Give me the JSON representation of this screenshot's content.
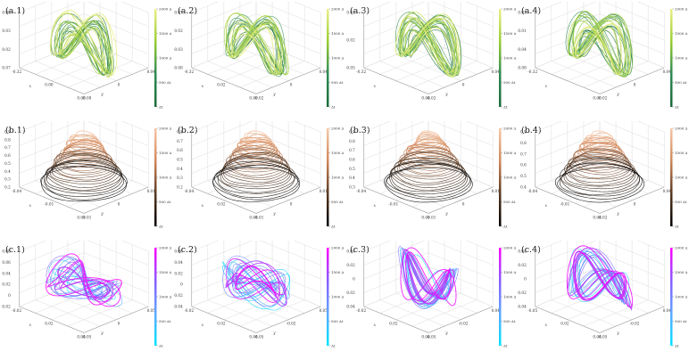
{
  "figure": {
    "background": "#ffffff"
  },
  "chart_data": [
    {
      "id": "a.1",
      "label": "(a.1)",
      "type": "line",
      "row": 0,
      "col": 0,
      "shape": "arch",
      "colormap": [
        "#1b6b3a",
        "#2e8b57",
        "#9acd32",
        "#ecf08a"
      ],
      "z_ticks": [
        "0.08",
        "0.03",
        "-0.02",
        "-0.07"
      ],
      "axis_ticks_left": [
        "-0.32",
        "0.00",
        "0.08"
      ],
      "axis_ticks_right": [
        "-0.08",
        "0",
        "0.04"
      ],
      "axis_labels": {
        "x": "x",
        "y": "y",
        "z": "z"
      },
      "colorbar_ticks": [
        "2000 Δt",
        "1500 Δt",
        "1000 Δt",
        "500 Δt",
        "Δt"
      ]
    },
    {
      "id": "a.2",
      "label": "(a.2)",
      "type": "line",
      "row": 0,
      "col": 1,
      "shape": "arch",
      "colormap": [
        "#1b6b3a",
        "#2e8b57",
        "#9acd32",
        "#ecf08a"
      ],
      "z_ticks": [
        "0.07",
        "0.02",
        "-0.03",
        "-0.08"
      ],
      "axis_ticks_left": [
        "-0.32",
        "0.02",
        "0.09"
      ],
      "axis_ticks_right": [
        "-0.02",
        "0",
        "0.04"
      ],
      "axis_labels": {
        "x": "x",
        "y": "y",
        "z": "z"
      },
      "colorbar_ticks": [
        "2000 Δt",
        "1500 Δt",
        "1000 Δt",
        "500 Δt",
        "Δt"
      ]
    },
    {
      "id": "a.3",
      "label": "(a.3)",
      "type": "line",
      "row": 0,
      "col": 2,
      "shape": "arch",
      "colormap": [
        "#1b6b3a",
        "#2e8b57",
        "#9acd32",
        "#ecf08a"
      ],
      "z_ticks": [
        "0.01",
        "-0.02",
        "-0.05"
      ],
      "axis_ticks_left": [
        "-0.32",
        "0.04"
      ],
      "axis_ticks_right": [
        "-0.02",
        "0",
        "0.04"
      ],
      "axis_labels": {
        "x": "x",
        "y": "y",
        "z": "z"
      },
      "colorbar_ticks": [
        "2000 Δt",
        "1500 Δt",
        "1000 Δt",
        "500 Δt",
        "Δt"
      ]
    },
    {
      "id": "a.4",
      "label": "(a.4)",
      "type": "line",
      "row": 0,
      "col": 3,
      "shape": "arch",
      "colormap": [
        "#1b6b3a",
        "#2e8b57",
        "#9acd32",
        "#ecf08a"
      ],
      "z_ticks": [
        "0.03",
        "-0.01",
        "-0.04",
        "-0.08"
      ],
      "axis_ticks_left": [
        "-0.32",
        "0.00"
      ],
      "axis_ticks_right": [
        "-0.02",
        "0",
        "0.04"
      ],
      "axis_labels": {
        "x": "x",
        "y": "y",
        "z": "z"
      },
      "colorbar_ticks": [
        "2000 Δt",
        "1500 Δt",
        "1000 Δt",
        "500 Δt",
        "Δt"
      ]
    },
    {
      "id": "b.1",
      "label": "(b.1)",
      "type": "line",
      "row": 1,
      "col": 0,
      "shape": "cone",
      "colormap": [
        "#000000",
        "#5a3a22",
        "#d2875a",
        "#f6c8a8"
      ],
      "z_ticks": [
        "0.9",
        "0.8",
        "0.7",
        "0.6",
        "0.5",
        "0.4",
        "0.3",
        "0.2"
      ],
      "axis_ticks_left": [
        "-0.04",
        "-0.01",
        "0.01"
      ],
      "axis_ticks_right": [
        "-0.01",
        "0",
        "0.01"
      ],
      "axis_labels": {
        "x": "x",
        "y": "y",
        "z": "z"
      },
      "colorbar_ticks": [
        "2000 Δt",
        "1500 Δt",
        "1000 Δt",
        "500 Δt",
        "Δt"
      ]
    },
    {
      "id": "b.2",
      "label": "(b.2)",
      "type": "line",
      "row": 1,
      "col": 1,
      "shape": "cone",
      "colormap": [
        "#000000",
        "#5a3a22",
        "#d2875a",
        "#f6c8a8"
      ],
      "z_ticks": [
        "0.8",
        "0.7",
        "0.6",
        "0.5",
        "0.4",
        "0.3",
        "0.2"
      ],
      "axis_ticks_left": [
        "-0.04",
        "0.02",
        "0.04"
      ],
      "axis_ticks_right": [
        "-0.01",
        "0",
        "0.01"
      ],
      "axis_labels": {
        "x": "x",
        "y": "y",
        "z": "z"
      },
      "colorbar_ticks": [
        "2000 Δt",
        "1500 Δt",
        "1000 Δt",
        "500 Δt",
        "Δt"
      ]
    },
    {
      "id": "b.3",
      "label": "(b.3)",
      "type": "line",
      "row": 1,
      "col": 2,
      "shape": "cone",
      "colormap": [
        "#000000",
        "#5a3a22",
        "#d2875a",
        "#f6c8a8"
      ],
      "z_ticks": [
        "0.9",
        "0.8",
        "0.7",
        "0.6",
        "0.5",
        "0.4",
        "0.3"
      ],
      "axis_ticks_left": [
        "-0.04",
        "-0.01",
        "0.01"
      ],
      "axis_ticks_right": [
        "-0.01",
        "0",
        "0.01"
      ],
      "axis_labels": {
        "x": "x",
        "y": "y",
        "z": "z"
      },
      "colorbar_ticks": [
        "2000 Δt",
        "1500 Δt",
        "1000 Δt",
        "500 Δt",
        "Δt"
      ]
    },
    {
      "id": "b.4",
      "label": "(b.4)",
      "type": "line",
      "row": 1,
      "col": 3,
      "shape": "cone",
      "colormap": [
        "#000000",
        "#5a3a22",
        "#d2875a",
        "#f6c8a8"
      ],
      "z_ticks": [
        "0.9",
        "0.8",
        "0.7",
        "0.6",
        "0.5",
        "0.4"
      ],
      "axis_ticks_left": [
        "-0.04",
        "-0.01",
        "0.04"
      ],
      "axis_ticks_right": [
        "-0.02",
        "0",
        "0.04"
      ],
      "axis_labels": {
        "x": "x",
        "y": "y",
        "z": "z"
      },
      "colorbar_ticks": [
        "2000 Δt",
        "1500 Δt",
        "1000 Δt",
        "500 Δt",
        "Δt"
      ]
    },
    {
      "id": "c.1",
      "label": "(c.1)",
      "type": "line",
      "row": 2,
      "col": 0,
      "shape": "bowtie",
      "colormap": [
        "#00e5ff",
        "#5fa8ff",
        "#8a5cff",
        "#ff00ff"
      ],
      "z_ticks": [
        "0.08",
        "0.06",
        "0.04",
        "0.02",
        "0",
        "-0.02"
      ],
      "axis_ticks_left": [
        "-0.02",
        "0.02",
        "0.04"
      ],
      "axis_ticks_right": [
        "-0.05",
        "0",
        "0.05"
      ],
      "axis_labels": {
        "x": "x",
        "y": "y",
        "z": "z"
      },
      "colorbar_ticks": [
        "2000 Δt",
        "1500 Δt",
        "1000 Δt",
        "500 Δt",
        "Δt"
      ]
    },
    {
      "id": "c.2",
      "label": "(c.2)",
      "type": "line",
      "row": 2,
      "col": 1,
      "shape": "loop",
      "colormap": [
        "#00e5ff",
        "#5fa8ff",
        "#8a5cff",
        "#ff00ff"
      ],
      "z_ticks": [
        "0.06",
        "0.04",
        "0.02",
        "0",
        "-0.02",
        "-0.04"
      ],
      "axis_ticks_left": [
        "-0.02",
        "0.02",
        "0.04"
      ],
      "axis_ticks_right": [
        "-0.05",
        "-0.02",
        "0.05"
      ],
      "axis_labels": {
        "x": "x",
        "y": "y",
        "z": "z"
      },
      "colorbar_ticks": [
        "2000 Δt",
        "1500 Δt",
        "1000 Δt",
        "500 Δt",
        "Δt"
      ]
    },
    {
      "id": "c.3",
      "label": "(c.3)",
      "type": "line",
      "row": 2,
      "col": 2,
      "shape": "wave",
      "colormap": [
        "#00e5ff",
        "#5fa8ff",
        "#8a5cff",
        "#ff00ff"
      ],
      "z_ticks": [
        "0.04",
        "0.02",
        "0",
        "-0.02",
        "-0.04"
      ],
      "axis_ticks_left": [
        "-0.02",
        "0.02",
        "0.04"
      ],
      "axis_ticks_right": [
        "-0.05",
        "-0.02",
        "0.04"
      ],
      "axis_labels": {
        "x": "x",
        "y": "y",
        "z": "z"
      },
      "colorbar_ticks": [
        "2000 Δt",
        "1500 Δt",
        "1000 Δt",
        "500 Δt",
        "Δt"
      ]
    },
    {
      "id": "c.4",
      "label": "(c.4)",
      "type": "line",
      "row": 2,
      "col": 3,
      "shape": "wave2",
      "colormap": [
        "#00e5ff",
        "#5fa8ff",
        "#8a5cff",
        "#ff00ff"
      ],
      "z_ticks": [
        "0.04",
        "0.02",
        "0",
        "-0.02",
        "-0.04"
      ],
      "axis_ticks_left": [
        "-0.05",
        "0.02",
        "0.04"
      ],
      "axis_ticks_right": [
        "-0.05",
        "-0.02",
        "0.04"
      ],
      "axis_labels": {
        "x": "x",
        "y": "y",
        "z": "z"
      },
      "colorbar_ticks": [
        "2000 Δt",
        "1500 Δt",
        "1000 Δt",
        "500 Δt",
        "Δt"
      ]
    }
  ]
}
